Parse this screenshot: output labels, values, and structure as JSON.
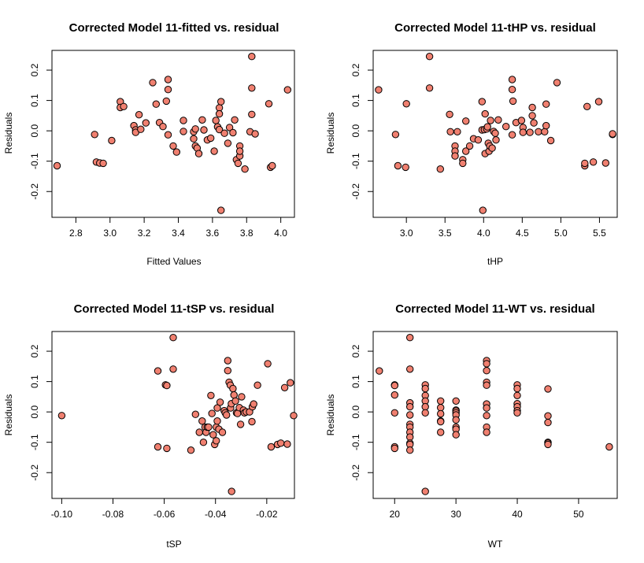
{
  "colors": {
    "point_fill": "#f08070",
    "point_stroke": "#000000",
    "axis": "#000000",
    "background": "#ffffff"
  },
  "chart_data": [
    {
      "type": "scatter",
      "title": "Corrected Model 11-fitted vs. residual",
      "xlabel": "Fitted Values",
      "ylabel": "Residuals",
      "xlim": [
        2.66,
        4.08
      ],
      "ylim": [
        -0.285,
        0.265
      ],
      "xticks": [
        2.8,
        3.0,
        3.2,
        3.4,
        3.6,
        3.8,
        4.0
      ],
      "xtick_labels": [
        "2.8",
        "3.0",
        "3.2",
        "3.4",
        "3.6",
        "3.8",
        "4.0"
      ],
      "yticks": [
        -0.2,
        -0.1,
        0.0,
        0.1,
        0.2
      ],
      "ytick_labels": [
        "-0.2",
        "-0.1",
        "0.0",
        "0.1",
        "0.2"
      ],
      "points": [
        [
          2.69,
          -0.115
        ],
        [
          2.91,
          -0.012
        ],
        [
          2.92,
          -0.103
        ],
        [
          2.94,
          -0.106
        ],
        [
          2.96,
          -0.107
        ],
        [
          3.01,
          -0.032
        ],
        [
          3.06,
          0.096
        ],
        [
          3.06,
          0.077
        ],
        [
          3.08,
          0.08
        ],
        [
          3.14,
          0.017
        ],
        [
          3.15,
          0.003
        ],
        [
          3.15,
          -0.005
        ],
        [
          3.17,
          0.053
        ],
        [
          3.18,
          0.005
        ],
        [
          3.21,
          0.026
        ],
        [
          3.25,
          0.159
        ],
        [
          3.27,
          0.088
        ],
        [
          3.29,
          0.027
        ],
        [
          3.31,
          0.014
        ],
        [
          3.33,
          0.098
        ],
        [
          3.34,
          0.136
        ],
        [
          3.34,
          0.169
        ],
        [
          3.34,
          -0.013
        ],
        [
          3.37,
          -0.05
        ],
        [
          3.39,
          -0.07
        ],
        [
          3.43,
          0.034
        ],
        [
          3.43,
          -0.002
        ],
        [
          3.49,
          -0.003
        ],
        [
          3.49,
          -0.026
        ],
        [
          3.5,
          -0.05
        ],
        [
          3.5,
          0.006
        ],
        [
          3.51,
          -0.057
        ],
        [
          3.52,
          -0.075
        ],
        [
          3.54,
          0.036
        ],
        [
          3.55,
          0.003
        ],
        [
          3.57,
          -0.03
        ],
        [
          3.59,
          -0.024
        ],
        [
          3.61,
          -0.067
        ],
        [
          3.62,
          0.034
        ],
        [
          3.63,
          0.013
        ],
        [
          3.64,
          0.076
        ],
        [
          3.64,
          0.056
        ],
        [
          3.64,
          0.004
        ],
        [
          3.65,
          0.096
        ],
        [
          3.65,
          -0.262
        ],
        [
          3.67,
          -0.008
        ],
        [
          3.69,
          -0.041
        ],
        [
          3.7,
          0.011
        ],
        [
          3.72,
          -0.006
        ],
        [
          3.73,
          0.036
        ],
        [
          3.74,
          -0.095
        ],
        [
          3.75,
          -0.107
        ],
        [
          3.76,
          -0.083
        ],
        [
          3.76,
          -0.05
        ],
        [
          3.76,
          -0.067
        ],
        [
          3.79,
          -0.126
        ],
        [
          3.82,
          -0.003
        ],
        [
          3.83,
          0.245
        ],
        [
          3.83,
          0.141
        ],
        [
          3.83,
          0.054
        ],
        [
          3.85,
          -0.01
        ],
        [
          3.93,
          0.089
        ],
        [
          3.94,
          -0.12
        ],
        [
          3.95,
          -0.115
        ],
        [
          4.04,
          0.135
        ]
      ]
    },
    {
      "type": "scatter",
      "title": "Corrected Model 11-tHP vs. residual",
      "xlabel": "tHP",
      "ylabel": "Residuals",
      "xlim": [
        2.57,
        5.73
      ],
      "ylim": [
        -0.285,
        0.265
      ],
      "xticks": [
        3.0,
        3.5,
        4.0,
        4.5,
        5.0,
        5.5
      ],
      "xtick_labels": [
        "3.0",
        "3.5",
        "4.0",
        "4.5",
        "5.0",
        "5.5"
      ],
      "yticks": [
        -0.2,
        -0.1,
        0.0,
        0.1,
        0.2
      ],
      "ytick_labels": [
        "-0.2",
        "-0.1",
        "0.0",
        "0.1",
        "0.2"
      ],
      "points": [
        [
          2.64,
          0.135
        ],
        [
          2.86,
          -0.012
        ],
        [
          2.89,
          -0.115
        ],
        [
          2.99,
          -0.12
        ],
        [
          3.0,
          0.089
        ],
        [
          3.3,
          0.245
        ],
        [
          3.3,
          0.141
        ],
        [
          3.44,
          -0.126
        ],
        [
          3.56,
          0.054
        ],
        [
          3.57,
          -0.003
        ],
        [
          3.63,
          -0.05
        ],
        [
          3.63,
          -0.067
        ],
        [
          3.63,
          -0.083
        ],
        [
          3.66,
          -0.003
        ],
        [
          3.73,
          -0.095
        ],
        [
          3.73,
          -0.107
        ],
        [
          3.77,
          -0.067
        ],
        [
          3.77,
          0.032
        ],
        [
          3.82,
          -0.05
        ],
        [
          3.87,
          -0.026
        ],
        [
          3.93,
          -0.03
        ],
        [
          3.98,
          0.096
        ],
        [
          3.98,
          0.003
        ],
        [
          3.99,
          -0.262
        ],
        [
          4.01,
          0.004
        ],
        [
          4.02,
          0.056
        ],
        [
          4.02,
          -0.075
        ],
        [
          4.04,
          0.006
        ],
        [
          4.05,
          0.013
        ],
        [
          4.06,
          -0.041
        ],
        [
          4.07,
          -0.067
        ],
        [
          4.08,
          -0.05
        ],
        [
          4.09,
          0.034
        ],
        [
          4.11,
          -0.057
        ],
        [
          4.13,
          -0.002
        ],
        [
          4.15,
          -0.008
        ],
        [
          4.16,
          -0.03
        ],
        [
          4.19,
          0.036
        ],
        [
          4.29,
          0.014
        ],
        [
          4.37,
          0.136
        ],
        [
          4.37,
          0.169
        ],
        [
          4.37,
          -0.013
        ],
        [
          4.38,
          0.098
        ],
        [
          4.42,
          0.027
        ],
        [
          4.49,
          0.034
        ],
        [
          4.51,
          0.011
        ],
        [
          4.51,
          -0.005
        ],
        [
          4.6,
          -0.005
        ],
        [
          4.63,
          0.05
        ],
        [
          4.63,
          0.077
        ],
        [
          4.65,
          0.026
        ],
        [
          4.71,
          -0.003
        ],
        [
          4.79,
          -0.003
        ],
        [
          4.81,
          0.088
        ],
        [
          4.81,
          0.017
        ],
        [
          4.87,
          -0.032
        ],
        [
          4.95,
          0.159
        ],
        [
          5.31,
          -0.115
        ],
        [
          5.31,
          -0.107
        ],
        [
          5.34,
          0.08
        ],
        [
          5.42,
          -0.103
        ],
        [
          5.49,
          0.096
        ],
        [
          5.58,
          -0.106
        ],
        [
          5.67,
          -0.012
        ],
        [
          5.67,
          -0.01
        ]
      ]
    },
    {
      "type": "scatter",
      "title": "Corrected Model 11-tSP vs. residual",
      "xlabel": "tSP",
      "ylabel": "Residuals",
      "xlim": [
        -0.1038,
        -0.0092
      ],
      "ylim": [
        -0.285,
        0.265
      ],
      "xticks": [
        -0.1,
        -0.08,
        -0.06,
        -0.04,
        -0.02
      ],
      "xtick_labels": [
        "-0.10",
        "-0.08",
        "-0.06",
        "-0.04",
        "-0.02"
      ],
      "yticks": [
        -0.2,
        -0.1,
        0.0,
        0.1,
        0.2
      ],
      "ytick_labels": [
        "-0.2",
        "-0.1",
        "0.0",
        "0.1",
        "0.2"
      ],
      "points": [
        [
          -0.1,
          -0.012
        ],
        [
          -0.0625,
          0.135
        ],
        [
          -0.0625,
          -0.115
        ],
        [
          -0.0595,
          0.089
        ],
        [
          -0.059,
          0.087
        ],
        [
          -0.059,
          -0.12
        ],
        [
          -0.0565,
          0.245
        ],
        [
          -0.0565,
          0.141
        ],
        [
          -0.0496,
          -0.126
        ],
        [
          -0.0478,
          -0.008
        ],
        [
          -0.0463,
          -0.067
        ],
        [
          -0.0452,
          -0.03
        ],
        [
          -0.0447,
          -0.1
        ],
        [
          -0.0441,
          -0.05
        ],
        [
          -0.0437,
          -0.067
        ],
        [
          -0.0432,
          -0.05
        ],
        [
          -0.0427,
          -0.05
        ],
        [
          -0.0418,
          0.054
        ],
        [
          -0.0414,
          -0.005
        ],
        [
          -0.0409,
          -0.075
        ],
        [
          -0.0403,
          -0.107
        ],
        [
          -0.0397,
          -0.095
        ],
        [
          -0.0397,
          -0.05
        ],
        [
          -0.0393,
          0.013
        ],
        [
          -0.0393,
          -0.03
        ],
        [
          -0.0387,
          -0.057
        ],
        [
          -0.0382,
          0.032
        ],
        [
          -0.0373,
          -0.067
        ],
        [
          -0.0366,
          0.004
        ],
        [
          -0.0362,
          -0.003
        ],
        [
          -0.0357,
          -0.01
        ],
        [
          -0.0352,
          0.169
        ],
        [
          -0.0352,
          0.136
        ],
        [
          -0.0347,
          0.098
        ],
        [
          -0.0342,
          0.088
        ],
        [
          -0.0341,
          0.013
        ],
        [
          -0.0338,
          0.027
        ],
        [
          -0.0337,
          -0.262
        ],
        [
          -0.0332,
          0.077
        ],
        [
          -0.0328,
          0.056
        ],
        [
          -0.0322,
          0.036
        ],
        [
          -0.0318,
          -0.003
        ],
        [
          -0.0314,
          -0.005
        ],
        [
          -0.0307,
          0.014
        ],
        [
          -0.0302,
          -0.041
        ],
        [
          -0.0298,
          0.05
        ],
        [
          -0.0291,
          0.006
        ],
        [
          -0.0287,
          -0.003
        ],
        [
          -0.028,
          0.0
        ],
        [
          -0.0267,
          0.0
        ],
        [
          -0.0258,
          -0.032
        ],
        [
          -0.0256,
          0.017
        ],
        [
          -0.0251,
          0.026
        ],
        [
          -0.0236,
          0.088
        ],
        [
          -0.0196,
          0.159
        ],
        [
          -0.0183,
          -0.115
        ],
        [
          -0.0158,
          -0.107
        ],
        [
          -0.0145,
          -0.103
        ],
        [
          -0.013,
          0.08
        ],
        [
          -0.012,
          -0.106
        ],
        [
          -0.0108,
          0.096
        ],
        [
          -0.0095,
          -0.012
        ]
      ]
    },
    {
      "type": "scatter",
      "title": "Corrected Model 11-WT vs. residual",
      "xlabel": "WT",
      "ylabel": "Residuals",
      "xlim": [
        16.5,
        56.3
      ],
      "ylim": [
        -0.285,
        0.265
      ],
      "xticks": [
        20,
        30,
        40,
        50
      ],
      "xtick_labels": [
        "20",
        "30",
        "40",
        "50"
      ],
      "yticks": [
        -0.2,
        -0.1,
        0.0,
        0.1,
        0.2
      ],
      "ytick_labels": [
        "-0.2",
        "-0.1",
        "0.0",
        "0.1",
        "0.2"
      ],
      "points": [
        [
          17.5,
          0.135
        ],
        [
          20,
          0.089
        ],
        [
          20,
          0.087
        ],
        [
          20,
          0.056
        ],
        [
          20,
          -0.003
        ],
        [
          20,
          -0.115
        ],
        [
          20,
          -0.12
        ],
        [
          22.5,
          0.245
        ],
        [
          22.5,
          0.141
        ],
        [
          22.5,
          0.03
        ],
        [
          22.5,
          0.017
        ],
        [
          22.5,
          -0.01
        ],
        [
          22.5,
          -0.041
        ],
        [
          22.5,
          -0.05
        ],
        [
          22.5,
          -0.067
        ],
        [
          22.5,
          -0.083
        ],
        [
          22.5,
          -0.103
        ],
        [
          22.5,
          -0.107
        ],
        [
          22.5,
          -0.126
        ],
        [
          25,
          0.089
        ],
        [
          25,
          0.077
        ],
        [
          25,
          0.054
        ],
        [
          25,
          0.036
        ],
        [
          25,
          0.017
        ],
        [
          25,
          -0.003
        ],
        [
          25,
          -0.262
        ],
        [
          27.5,
          0.036
        ],
        [
          27.5,
          0.014
        ],
        [
          27.5,
          -0.006
        ],
        [
          27.5,
          -0.03
        ],
        [
          27.5,
          -0.032
        ],
        [
          27.5,
          -0.067
        ],
        [
          30,
          0.036
        ],
        [
          30,
          0.006
        ],
        [
          30,
          0.003
        ],
        [
          30,
          -0.003
        ],
        [
          30,
          -0.01
        ],
        [
          30,
          -0.026
        ],
        [
          30,
          -0.05
        ],
        [
          30,
          -0.057
        ],
        [
          30,
          -0.075
        ],
        [
          35,
          0.169
        ],
        [
          35,
          0.159
        ],
        [
          35,
          0.136
        ],
        [
          35,
          0.098
        ],
        [
          35,
          0.088
        ],
        [
          35,
          0.026
        ],
        [
          35,
          0.013
        ],
        [
          35,
          -0.012
        ],
        [
          35,
          -0.05
        ],
        [
          35,
          -0.067
        ],
        [
          40,
          0.089
        ],
        [
          40,
          0.077
        ],
        [
          40,
          0.054
        ],
        [
          40,
          0.027
        ],
        [
          40,
          0.017
        ],
        [
          40,
          0.004
        ],
        [
          40,
          -0.003
        ],
        [
          45,
          0.076
        ],
        [
          45,
          -0.013
        ],
        [
          45,
          -0.035
        ],
        [
          45,
          -0.1
        ],
        [
          45,
          -0.103
        ],
        [
          45,
          -0.107
        ],
        [
          55,
          -0.115
        ]
      ]
    }
  ]
}
